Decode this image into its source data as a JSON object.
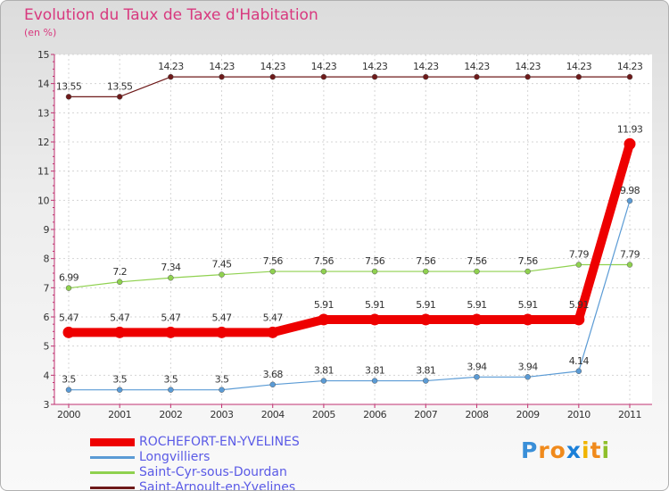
{
  "header": {
    "title": "Evolution du Taux de Taxe d'Habitation",
    "subtitle": "(en %)"
  },
  "chart_data": {
    "type": "line",
    "title": "Evolution du Taux de Taxe d'Habitation",
    "ylabel": "(en %)",
    "x": [
      "2000",
      "2001",
      "2002",
      "2003",
      "2004",
      "2005",
      "2006",
      "2007",
      "2008",
      "2009",
      "2010",
      "2011"
    ],
    "ylim": [
      3,
      15
    ],
    "yticks": [
      "3",
      "4",
      "5",
      "6",
      "7",
      "8",
      "9",
      "10",
      "11",
      "12",
      "13",
      "14",
      "15"
    ],
    "grid": true,
    "legend_position": "bottom-left",
    "series": [
      {
        "name": "ROCHEFORT-EN-YVELINES",
        "color": "#ee0000",
        "values": [
          5.47,
          5.47,
          5.47,
          5.47,
          5.47,
          5.91,
          5.91,
          5.91,
          5.91,
          5.91,
          5.91,
          11.93
        ],
        "labels": [
          "5.47",
          "5.47",
          "5.47",
          "5.47",
          "5.47",
          "5.91",
          "5.91",
          "5.91",
          "5.91",
          "5.91",
          "5.91",
          "11.93"
        ]
      },
      {
        "name": "Longvilliers",
        "color": "#5b9bd5",
        "values": [
          3.5,
          3.5,
          3.5,
          3.5,
          3.68,
          3.81,
          3.81,
          3.81,
          3.94,
          3.94,
          4.14,
          9.98
        ],
        "labels": [
          "3.5",
          "3.5",
          "3.5",
          "3.5",
          "3.68",
          "3.81",
          "3.81",
          "3.81",
          "3.94",
          "3.94",
          "4.14",
          "9.98"
        ]
      },
      {
        "name": "Saint-Cyr-sous-Dourdan",
        "color": "#8fd14f",
        "values": [
          6.99,
          7.2,
          7.34,
          7.45,
          7.56,
          7.56,
          7.56,
          7.56,
          7.56,
          7.56,
          7.79,
          7.79
        ],
        "labels": [
          "6.99",
          "7.2",
          "7.34",
          "7.45",
          "7.56",
          "7.56",
          "7.56",
          "7.56",
          "7.56",
          "7.56",
          "7.79",
          "7.79"
        ]
      },
      {
        "name": "Saint-Arnoult-en-Yvelines",
        "color": "#6e1a1a",
        "values": [
          13.55,
          13.55,
          14.23,
          14.23,
          14.23,
          14.23,
          14.23,
          14.23,
          14.23,
          14.23,
          14.23,
          14.23
        ],
        "labels": [
          "13.55",
          "13.55",
          "14.23",
          "14.23",
          "14.23",
          "14.23",
          "14.23",
          "14.23",
          "14.23",
          "14.23",
          "14.23",
          "14.23"
        ]
      }
    ]
  },
  "legend": {
    "items": [
      {
        "label": "ROCHEFORT-EN-YVELINES",
        "color": "#ee0000"
      },
      {
        "label": "Longvilliers",
        "color": "#5b9bd5"
      },
      {
        "label": "Saint-Cyr-sous-Dourdan",
        "color": "#8fd14f"
      },
      {
        "label": "Saint-Arnoult-en-Yvelines",
        "color": "#6e1a1a"
      }
    ]
  },
  "logo": {
    "text": "Proxiti",
    "letters": [
      "P",
      "r",
      "o",
      "x",
      "i",
      "t",
      "i"
    ],
    "colors": [
      "#3a8fd8",
      "#f08a1c",
      "#f08a1c",
      "#1a7fd8",
      "#f0b400",
      "#f08a1c",
      "#8fbf2a"
    ]
  }
}
